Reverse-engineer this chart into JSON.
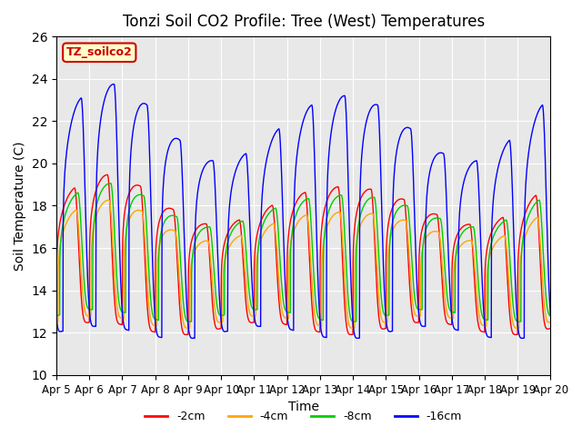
{
  "title": "Tonzi Soil CO2 Profile: Tree (West) Temperatures",
  "ylabel": "Soil Temperature (C)",
  "xlabel": "Time",
  "ylim": [
    10,
    26
  ],
  "xtick_labels": [
    "Apr 5",
    "Apr 6",
    "Apr 7",
    "Apr 8",
    "Apr 9",
    "Apr 10",
    "Apr 11",
    "Apr 12",
    "Apr 13",
    "Apr 14",
    "Apr 15",
    "Apr 16",
    "Apr 17",
    "Apr 18",
    "Apr 19",
    "Apr 20"
  ],
  "series": [
    {
      "label": "-2cm",
      "color": "#ff0000",
      "phase_lag": 0.0,
      "amp": 7.0,
      "base": 12.2
    },
    {
      "label": "-4cm",
      "color": "#ffa500",
      "phase_lag": 0.05,
      "amp": 5.5,
      "base": 12.5
    },
    {
      "label": "-8cm",
      "color": "#00cc00",
      "phase_lag": 0.1,
      "amp": 6.0,
      "base": 12.8
    },
    {
      "label": "-16cm",
      "color": "#0000ff",
      "phase_lag": 0.2,
      "amp": 11.5,
      "base": 12.0
    }
  ],
  "n_points": 5000,
  "plot_bg": "#e8e8e8",
  "fig_bg": "#ffffff",
  "watermark_text": "TZ_soilco2",
  "watermark_bg": "#ffffcc",
  "watermark_border": "#cc0000",
  "legend_colors": [
    "#ff0000",
    "#ffa500",
    "#00cc00",
    "#0000ff"
  ],
  "legend_labels": [
    "-2cm",
    "-4cm",
    "-8cm",
    "-16cm"
  ],
  "peak_sharpness": 6.0
}
